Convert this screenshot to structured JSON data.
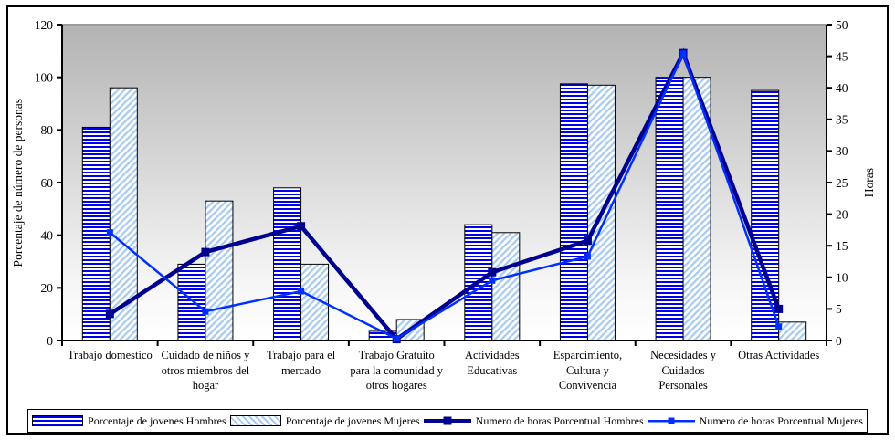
{
  "chart_data": {
    "type": "combo",
    "title": "",
    "categories": [
      "Trabajo domestico",
      "Cuidado de niños y otros miembros del hogar",
      "Trabajo para el mercado",
      "Trabajo Gratuito para la comunidad y otros hogares",
      "Actividades Educativas",
      "Esparcimiento, Cultura y Convivencia",
      "Necesidades y Cuidados Personales",
      "Otras Actividades"
    ],
    "series": [
      {
        "name": "Porcentaje de jovenes Hombres",
        "type": "bar",
        "axis": "left",
        "values": [
          81,
          29,
          58,
          3.5,
          44,
          97.5,
          100,
          95
        ]
      },
      {
        "name": "Porcentaje de jovenes Mujeres",
        "type": "bar",
        "axis": "left",
        "values": [
          96,
          53,
          29,
          8,
          41,
          97,
          100,
          7
        ]
      },
      {
        "name": "Numero de horas Porcentual Hombres",
        "type": "line",
        "axis": "right",
        "values": [
          4.2,
          14,
          18.1,
          0.2,
          10.8,
          15.8,
          45.5,
          5
        ]
      },
      {
        "name": "Numero de horas Porcentual Mujeres",
        "type": "line",
        "axis": "right",
        "values": [
          17.1,
          4.6,
          7.8,
          0.3,
          9.5,
          13.3,
          45.4,
          2.2
        ]
      }
    ],
    "left_axis": {
      "label": "Porcentaje de número de personas",
      "min": 0,
      "max": 120,
      "step": 20,
      "ticks": [
        0,
        20,
        40,
        60,
        80,
        100,
        120
      ]
    },
    "right_axis": {
      "label": "Horas",
      "min": 0,
      "max": 50,
      "step": 5,
      "ticks": [
        0,
        5,
        10,
        15,
        20,
        25,
        30,
        35,
        40,
        45,
        50
      ]
    },
    "legend_position": "bottom",
    "grid": false,
    "colors": {
      "bar_hombres": "#0000f0",
      "bar_mujeres": "#a6caf0",
      "line_hombres": "#000090",
      "line_mujeres": "#0030ff",
      "plot_bg_top": "#b3b3b3",
      "plot_bg_bottom": "#ffffff",
      "axis": "#000000"
    }
  }
}
